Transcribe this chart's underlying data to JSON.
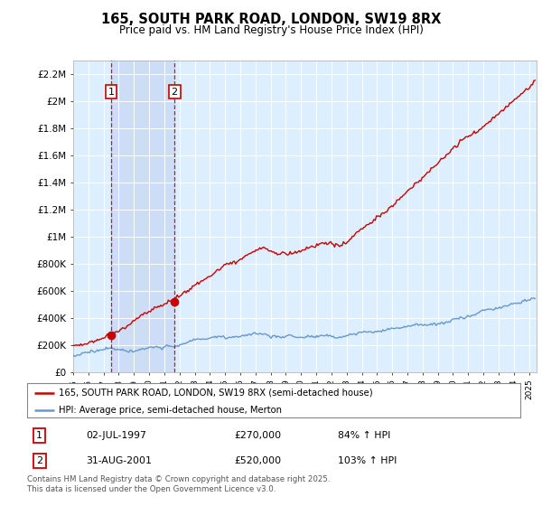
{
  "title": "165, SOUTH PARK ROAD, LONDON, SW19 8RX",
  "subtitle": "Price paid vs. HM Land Registry's House Price Index (HPI)",
  "legend_line1": "165, SOUTH PARK ROAD, LONDON, SW19 8RX (semi-detached house)",
  "legend_line2": "HPI: Average price, semi-detached house, Merton",
  "annotation1_label": "1",
  "annotation1_date": "02-JUL-1997",
  "annotation1_price": "£270,000",
  "annotation1_hpi": "84% ↑ HPI",
  "annotation2_label": "2",
  "annotation2_date": "31-AUG-2001",
  "annotation2_price": "£520,000",
  "annotation2_hpi": "103% ↑ HPI",
  "footnote": "Contains HM Land Registry data © Crown copyright and database right 2025.\nThis data is licensed under the Open Government Licence v3.0.",
  "red_color": "#cc0000",
  "blue_color": "#6699cc",
  "shade_color": "#ccddf5",
  "background_color": "#ddeeff",
  "sale1_year": 1997.5,
  "sale1_price": 270000,
  "sale2_year": 2001.67,
  "sale2_price": 520000,
  "ylim_max": 2300000,
  "xlim_min": 1995,
  "xlim_max": 2025.5
}
